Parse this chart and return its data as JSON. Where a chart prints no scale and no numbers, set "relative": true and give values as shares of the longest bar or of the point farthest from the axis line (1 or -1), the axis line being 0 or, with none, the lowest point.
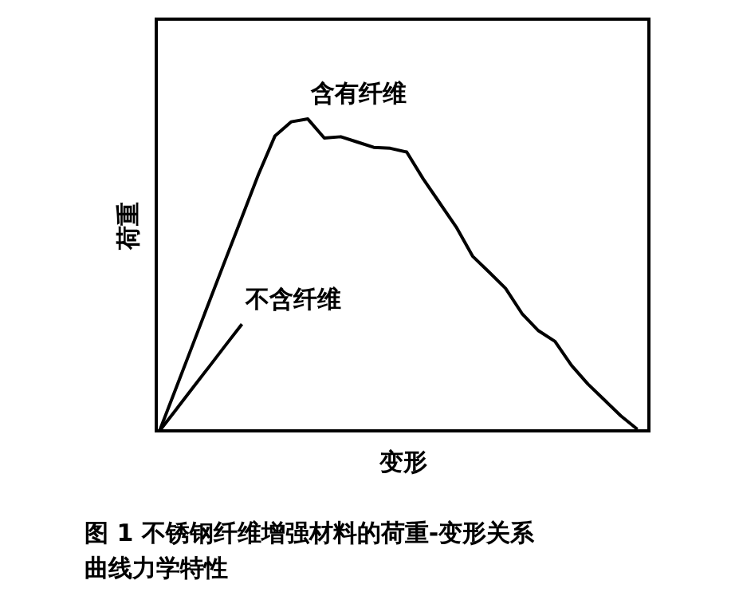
{
  "chart_data": {
    "type": "line",
    "title": "图 1 不锈钢纤维增强材料的荷重-变形关系曲线力学特性",
    "xlabel": "变形",
    "ylabel": "荷重",
    "categories": [
      null,
      null,
      null,
      null,
      null,
      null,
      null,
      null,
      null,
      null,
      null,
      null,
      null,
      null,
      null,
      null,
      null,
      null,
      null,
      null,
      null,
      null,
      null,
      null,
      null,
      null,
      null,
      null,
      null,
      null
    ],
    "relative": true,
    "grid": false,
    "legend": false,
    "tick_labels": false,
    "marker": "none",
    "line_style": "solid",
    "series": [
      {
        "name": "含有纤维",
        "color": "#000000",
        "values": [
          0,
          0.137,
          0.274,
          0.412,
          0.549,
          0.685,
          0.822,
          0.945,
          0.991,
          1.0,
          0.939,
          0.943,
          0.926,
          0.909,
          0.906,
          0.894,
          0.808,
          0.731,
          0.654,
          0.56,
          0.509,
          0.457,
          0.376,
          0.321,
          0.287,
          0.21,
          0.15,
          0.099,
          0.048,
          0.005
        ]
      },
      {
        "name": "不含纤维",
        "color": "#000000",
        "values": [
          0,
          0.068,
          0.137,
          0.205,
          0.274,
          0.342,
          null,
          null,
          null,
          null,
          null,
          null,
          null,
          null,
          null,
          null,
          null,
          null,
          null,
          null,
          null,
          null,
          null,
          null,
          null,
          null,
          null,
          null,
          null,
          null
        ]
      }
    ]
  }
}
